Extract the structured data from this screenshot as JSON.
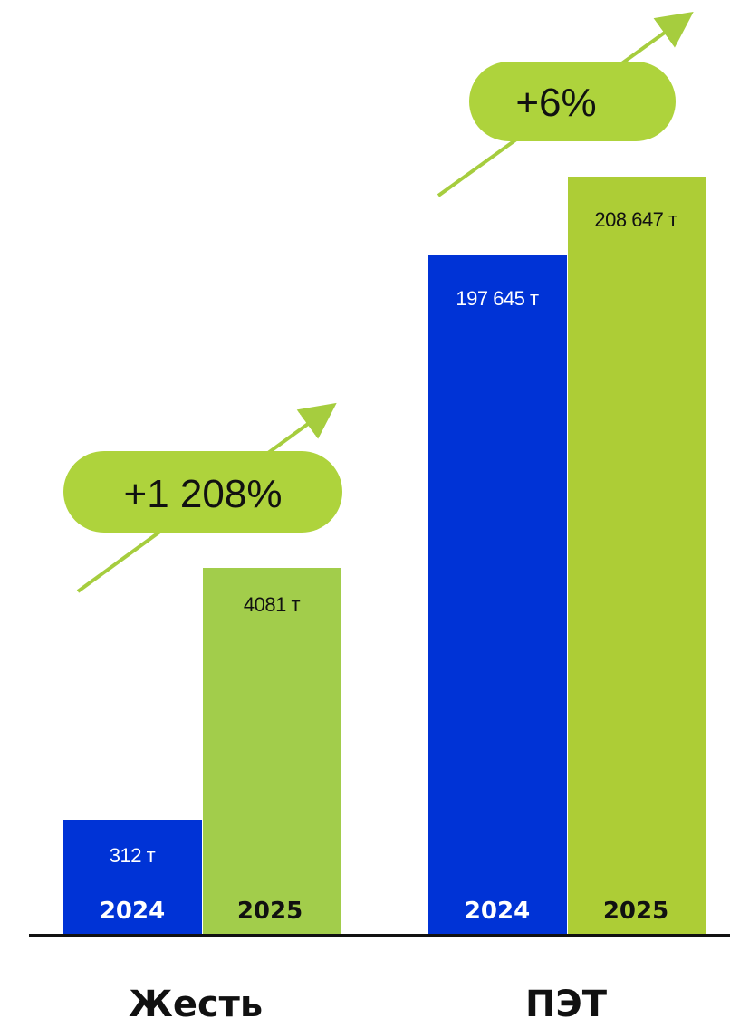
{
  "colors": {
    "blue": "#0033d6",
    "green_jest": "#a2cd4b",
    "green_pet": "#adcd36",
    "badge": "#aed33c",
    "arrow": "#a6cd3e",
    "text_dark": "#111111",
    "text_white": "#ffffff",
    "axis": "#111111"
  },
  "chart_data": {
    "type": "bar",
    "categories": [
      "Жесть",
      "ПЭТ"
    ],
    "series": [
      {
        "name": "2024",
        "values": [
          312,
          197645
        ],
        "value_labels": [
          "312 т",
          "197 645 т"
        ]
      },
      {
        "name": "2025",
        "values": [
          4081,
          208647
        ],
        "value_labels": [
          "4081 т",
          "208 647 т"
        ]
      }
    ],
    "year_labels": [
      "2024",
      "2025"
    ],
    "growth_badges": [
      "+1 208%",
      "+6%"
    ],
    "grid": false,
    "legend": "none",
    "scale_note": "categories drawn on independent scales"
  }
}
